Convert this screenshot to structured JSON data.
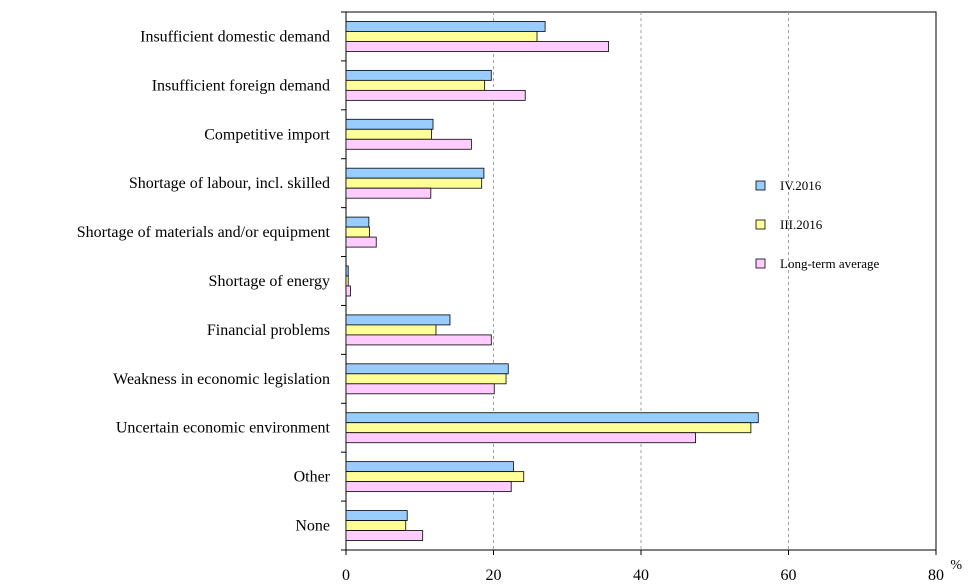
{
  "chart_data": {
    "type": "bar",
    "orientation": "horizontal",
    "categories": [
      "Insufficient domestic demand",
      "Insufficient foreign demand",
      "Competitive import",
      "Shortage of labour, incl. skilled",
      "Shortage of materials and/or equipment",
      "Shortage of energy",
      "Financial problems",
      "Weakness in economic legislation",
      "Uncertain economic environment",
      "Other",
      "None"
    ],
    "series": [
      {
        "name": "IV.2016",
        "color": "#99ccff",
        "values": [
          27.0,
          19.7,
          11.8,
          18.7,
          3.1,
          0.3,
          14.1,
          22.0,
          55.9,
          22.7,
          8.3
        ]
      },
      {
        "name": "III.2016",
        "color": "#ffff99",
        "values": [
          25.9,
          18.8,
          11.6,
          18.4,
          3.2,
          0.3,
          12.2,
          21.7,
          54.9,
          24.1,
          8.1
        ]
      },
      {
        "name": "Long-term average",
        "color": "#ffccff",
        "values": [
          35.6,
          24.3,
          17.0,
          11.5,
          4.1,
          0.6,
          19.7,
          20.1,
          47.4,
          22.4,
          10.4
        ]
      }
    ],
    "xlim": [
      0,
      80
    ],
    "xticks": [
      0,
      20,
      40,
      60,
      80
    ],
    "xtick_labels": [
      "0",
      "20",
      "40",
      "60",
      "80"
    ],
    "unit_label": "%",
    "grid": "vertical dashed",
    "legend": "right"
  }
}
